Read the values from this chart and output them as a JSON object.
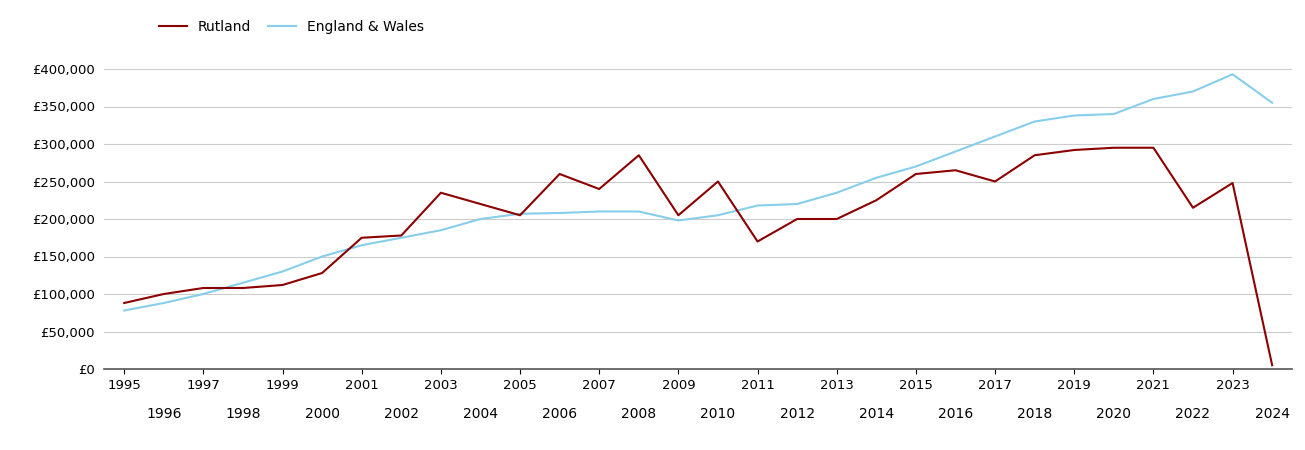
{
  "rutland_years": [
    1995,
    1996,
    1997,
    1998,
    1999,
    2000,
    2001,
    2002,
    2003,
    2004,
    2005,
    2006,
    2007,
    2008,
    2009,
    2010,
    2011,
    2012,
    2013,
    2014,
    2015,
    2016,
    2017,
    2018,
    2019,
    2020,
    2021,
    2022,
    2023,
    2024
  ],
  "rutland_values": [
    88000,
    100000,
    108000,
    108000,
    112000,
    128000,
    175000,
    178000,
    235000,
    220000,
    205000,
    260000,
    240000,
    285000,
    205000,
    250000,
    170000,
    200000,
    200000,
    225000,
    260000,
    265000,
    250000,
    285000,
    292000,
    295000,
    295000,
    215000,
    248000,
    5000
  ],
  "ew_years": [
    1995,
    1996,
    1997,
    1998,
    1999,
    2000,
    2001,
    2002,
    2003,
    2004,
    2005,
    2006,
    2007,
    2008,
    2009,
    2010,
    2011,
    2012,
    2013,
    2014,
    2015,
    2016,
    2017,
    2018,
    2019,
    2020,
    2021,
    2022,
    2023,
    2024
  ],
  "ew_values": [
    78000,
    88000,
    100000,
    115000,
    130000,
    150000,
    165000,
    175000,
    185000,
    200000,
    207000,
    208000,
    210000,
    210000,
    198000,
    205000,
    218000,
    220000,
    235000,
    255000,
    270000,
    290000,
    310000,
    330000,
    338000,
    340000,
    360000,
    370000,
    393000,
    355000
  ],
  "rutland_color": "#8B0000",
  "ew_color": "#87CEEB",
  "rutland_label": "Rutland",
  "ew_label": "England & Wales",
  "ylim": [
    0,
    420000
  ],
  "yticks": [
    0,
    50000,
    100000,
    150000,
    200000,
    250000,
    300000,
    350000,
    400000
  ],
  "xlim": [
    1994.5,
    2024.5
  ],
  "line_width": 1.5,
  "background_color": "#ffffff",
  "grid_color": "#cccccc",
  "legend_fontsize": 10,
  "tick_fontsize": 9.5
}
